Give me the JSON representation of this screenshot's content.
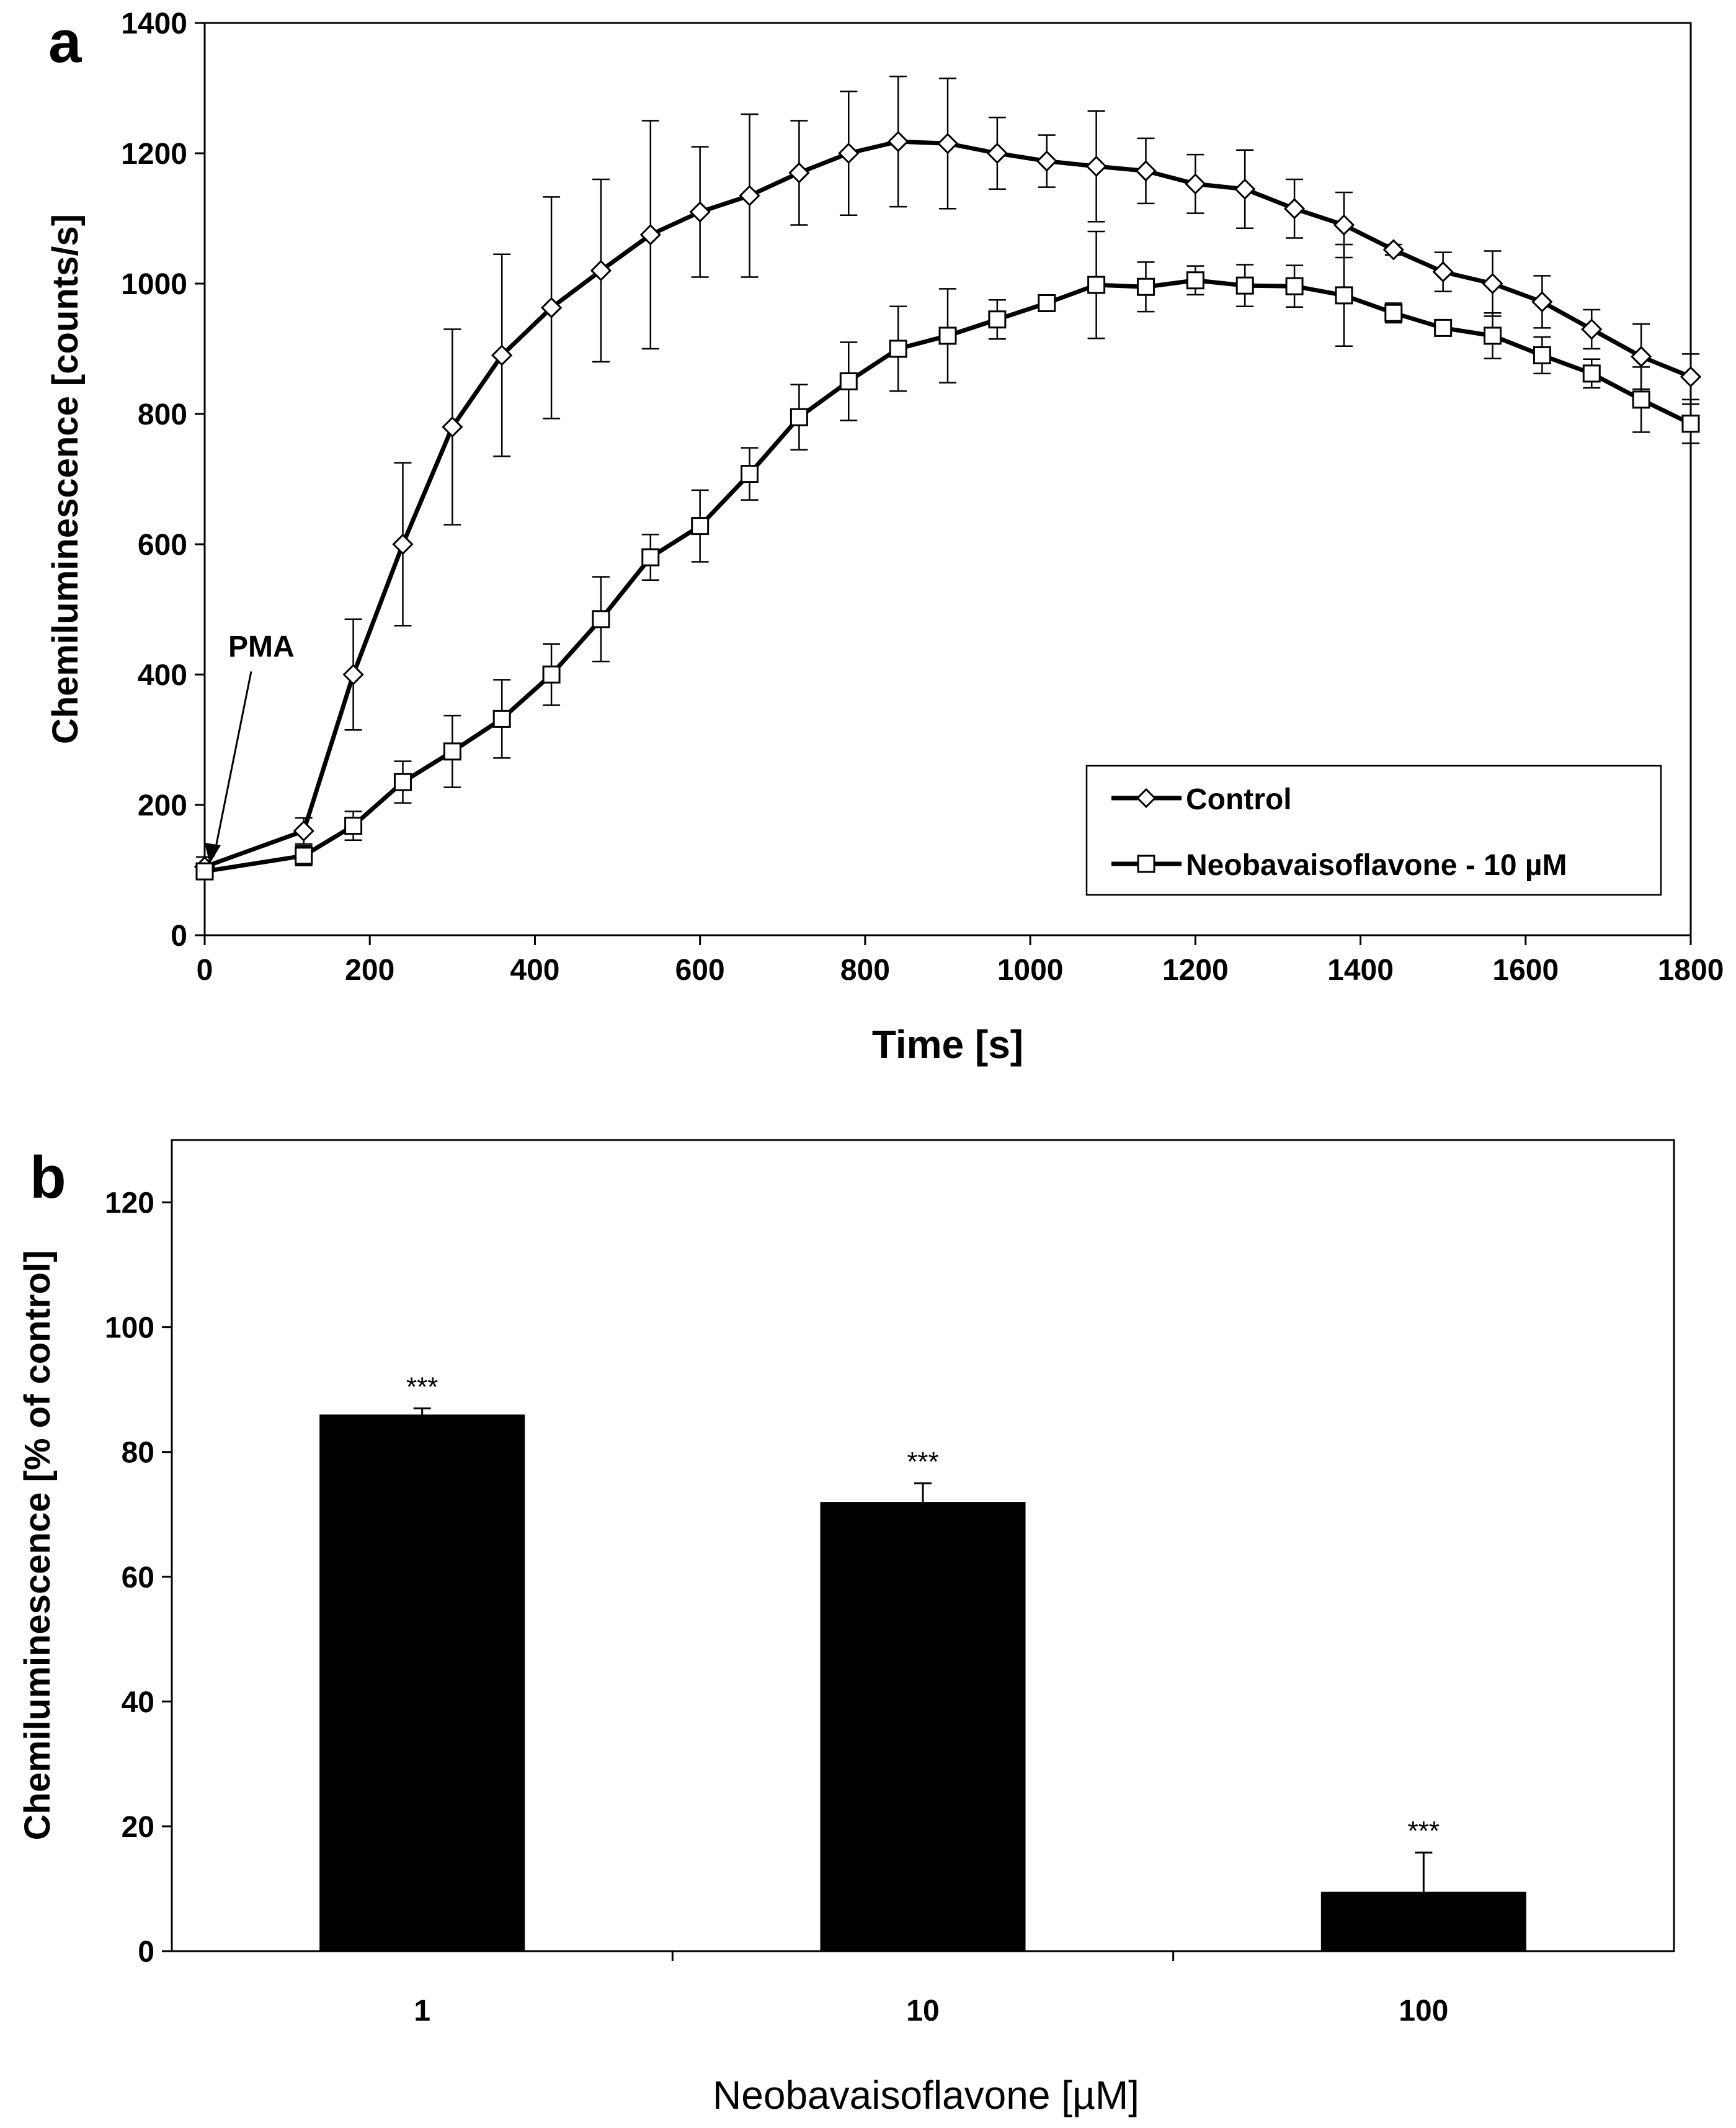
{
  "panels": {
    "a": {
      "letter": "a"
    },
    "b": {
      "letter": "b"
    }
  },
  "chart_data": [
    {
      "type": "line",
      "panel": "a",
      "xlabel": "Time [s]",
      "ylabel": "Chemiluminescence [counts/s]",
      "xlim": [
        0,
        1800
      ],
      "ylim": [
        0,
        1400
      ],
      "xticks": [
        0,
        200,
        400,
        600,
        800,
        1000,
        1200,
        1400,
        1600,
        1800
      ],
      "yticks": [
        0,
        200,
        400,
        600,
        800,
        1000,
        1200,
        1400
      ],
      "grid": false,
      "legend": "bottom-right",
      "annotation": {
        "text": "PMA",
        "x": 0,
        "y": 105
      },
      "x": [
        0,
        120,
        180,
        240,
        300,
        360,
        420,
        480,
        540,
        600,
        660,
        720,
        780,
        840,
        900,
        960,
        1020,
        1080,
        1140,
        1200,
        1260,
        1320,
        1380,
        1440,
        1500,
        1560,
        1620,
        1680,
        1740,
        1800
      ],
      "series": [
        {
          "name": "Control",
          "marker": "diamond",
          "values": [
            105,
            160,
            400,
            600,
            780,
            890,
            963,
            1020,
            1075,
            1110,
            1135,
            1170,
            1200,
            1218,
            1215,
            1200,
            1188,
            1180,
            1173,
            1153,
            1145,
            1115,
            1090,
            1052,
            1018,
            1000,
            972,
            930,
            888,
            857
          ],
          "errors": [
            15,
            20,
            85,
            125,
            150,
            155,
            170,
            140,
            175,
            100,
            125,
            80,
            95,
            100,
            100,
            55,
            40,
            85,
            50,
            45,
            60,
            45,
            50,
            8,
            30,
            50,
            40,
            30,
            50,
            35
          ]
        },
        {
          "name": "Neobavaisoflavone - 10 µM",
          "marker": "square",
          "values": [
            98,
            122,
            168,
            235,
            282,
            332,
            400,
            485,
            580,
            628,
            708,
            795,
            850,
            900,
            920,
            945,
            970,
            998,
            995,
            1005,
            997,
            996,
            982,
            955,
            932,
            920,
            890,
            862,
            822,
            785
          ],
          "errors": [
            10,
            15,
            22,
            32,
            55,
            60,
            47,
            65,
            35,
            55,
            40,
            50,
            60,
            65,
            72,
            30,
            12,
            82,
            38,
            22,
            32,
            32,
            78,
            15,
            10,
            35,
            28,
            22,
            50,
            30
          ]
        }
      ]
    },
    {
      "type": "bar",
      "panel": "b",
      "xlabel": "Neobavaisoflavone [µM]",
      "ylabel": "Chemiluminescence [% of control]",
      "ylim": [
        0,
        130
      ],
      "yticks": [
        0,
        20,
        40,
        60,
        80,
        100,
        120
      ],
      "grid": false,
      "categories": [
        "1",
        "10",
        "100"
      ],
      "values": [
        86,
        72,
        9.5
      ],
      "errors": [
        1,
        3,
        6.3
      ],
      "significance": [
        "***",
        "***",
        "***"
      ],
      "bar_color": "#000000"
    }
  ]
}
